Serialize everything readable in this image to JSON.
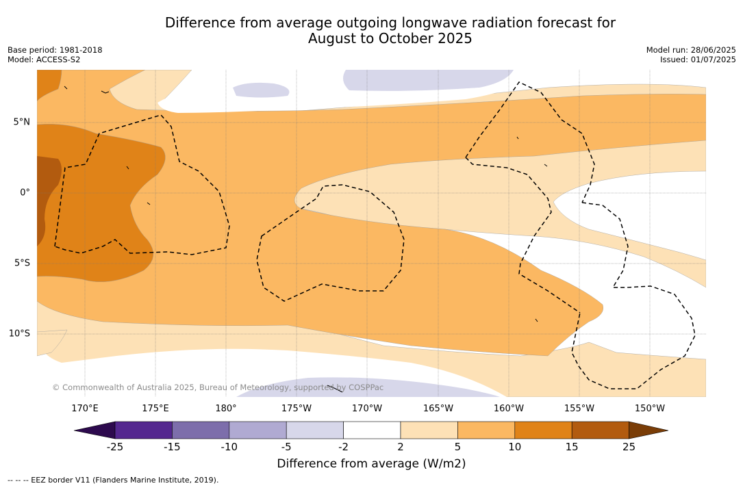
{
  "title_line1": "Difference from average outgoing longwave radiation forecast for",
  "title_line2": "August to October 2025",
  "base_period": "Base period: 1981-2018",
  "model": "Model: ACCESS-S2",
  "model_run": "Model run: 28/06/2025",
  "issued": "Issued: 01/07/2025",
  "copyright": "© Commonwealth of Australia 2025, Bureau of Meteorology, supported by COSPPac",
  "lon_labels": [
    "170°E",
    "175°E",
    "180°",
    "175°W",
    "170°W",
    "165°W",
    "160°W",
    "155°W",
    "150°W"
  ],
  "lat_labels": [
    "5°N",
    "0°",
    "5°S",
    "10°S"
  ],
  "colorbar": {
    "title": "Difference from average (W/m2)",
    "ticks": [
      "-25",
      "-15",
      "-10",
      "-5",
      "-2",
      "2",
      "5",
      "10",
      "15",
      "25"
    ],
    "colors": {
      "below_-25": "#2d0a4e",
      "-25_-15": "#54278f",
      "-15_-10": "#7d6eab",
      "-10_-5": "#b0aad2",
      "-5_-2": "#d7d7ea",
      "-2_2": "#ffffff",
      "2_5": "#fde1b6",
      "5_10": "#fbb862",
      "10_15": "#e08318",
      "15_25": "#b25b0f",
      "above_25": "#7a3d07"
    }
  },
  "footnote": "--  --  -- EEZ border V11 (Flanders Marine Institute, 2019)."
}
